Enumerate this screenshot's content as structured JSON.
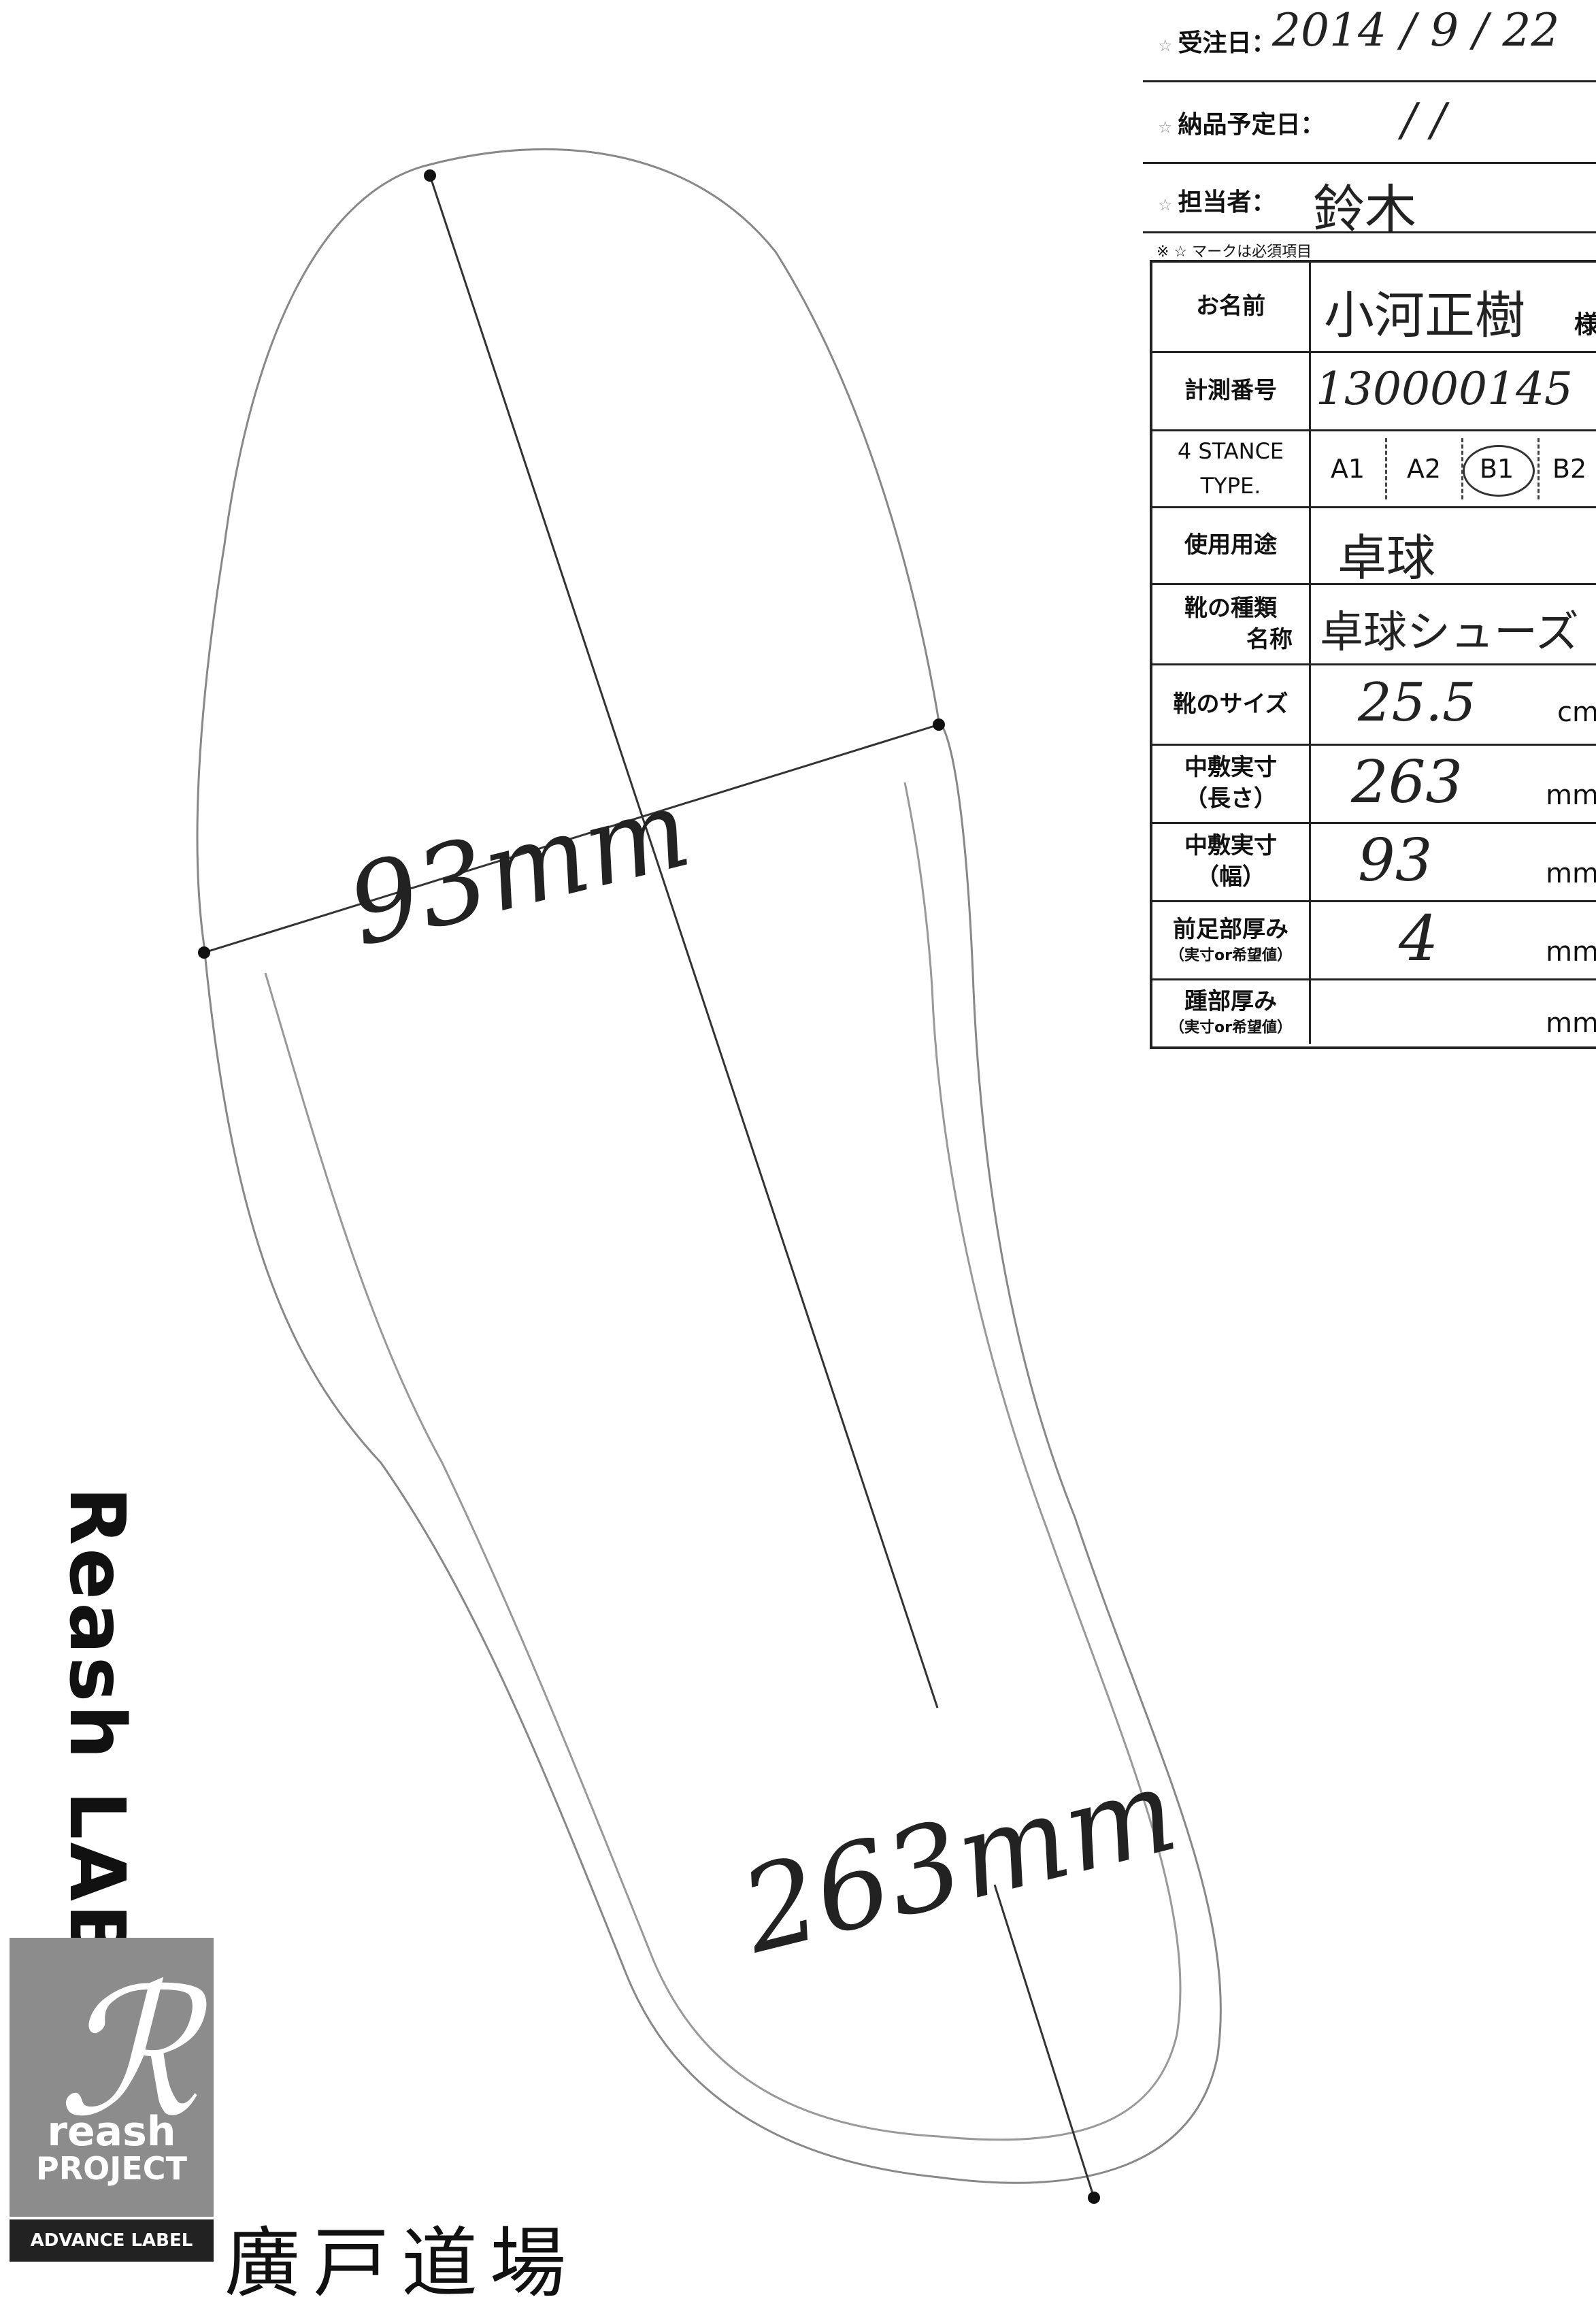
{
  "order": {
    "received_label": "受注日：",
    "received_value": "2014 / 9 / 22",
    "delivery_label": "納品予定日：",
    "delivery_value": "/ /",
    "staff_label": "担当者：",
    "staff_value": "鈴木",
    "required_note": "※ ☆ マークは必須項目"
  },
  "form": {
    "name_label": "お名前",
    "name_value": "小河正樹",
    "name_suffix": "様",
    "measure_no_label": "計測番号",
    "measure_no_value": "130000145",
    "stance_label_1": "4 STANCE",
    "stance_label_2": "TYPE.",
    "stance_options": [
      "A1",
      "A2",
      "B1",
      "B2"
    ],
    "stance_selected": "B1",
    "usage_label": "使用用途",
    "usage_value": "卓球",
    "shoe_type_label_1": "靴の種類",
    "shoe_type_label_2": "名称",
    "shoe_type_value": "卓球シューズ",
    "shoe_size_label": "靴のサイズ",
    "shoe_size_value": "25.5",
    "shoe_size_unit": "cm",
    "insole_length_label_1": "中敷実寸",
    "insole_length_label_2": "（長さ）",
    "insole_length_value": "263",
    "insole_length_unit": "mm",
    "insole_width_label_1": "中敷実寸",
    "insole_width_label_2": "（幅）",
    "insole_width_value": "93",
    "insole_width_unit": "mm",
    "forefoot_label_1": "前足部厚み",
    "forefoot_label_2": "（実寸or希望値）",
    "forefoot_value": "4",
    "forefoot_unit": "mm",
    "heel_label_1": "踵部厚み",
    "heel_label_2": "（実寸or希望値）",
    "heel_value": "",
    "heel_unit": "mm"
  },
  "tracing": {
    "width_annotation": "93mm",
    "length_annotation": "263mm"
  },
  "branding": {
    "vertical_logo": "Reash LAB.",
    "logo_word": "reash",
    "logo_sub": "PROJECT",
    "logo_band": "ADVANCE LABEL",
    "dojo_name": "廣戸道場"
  }
}
